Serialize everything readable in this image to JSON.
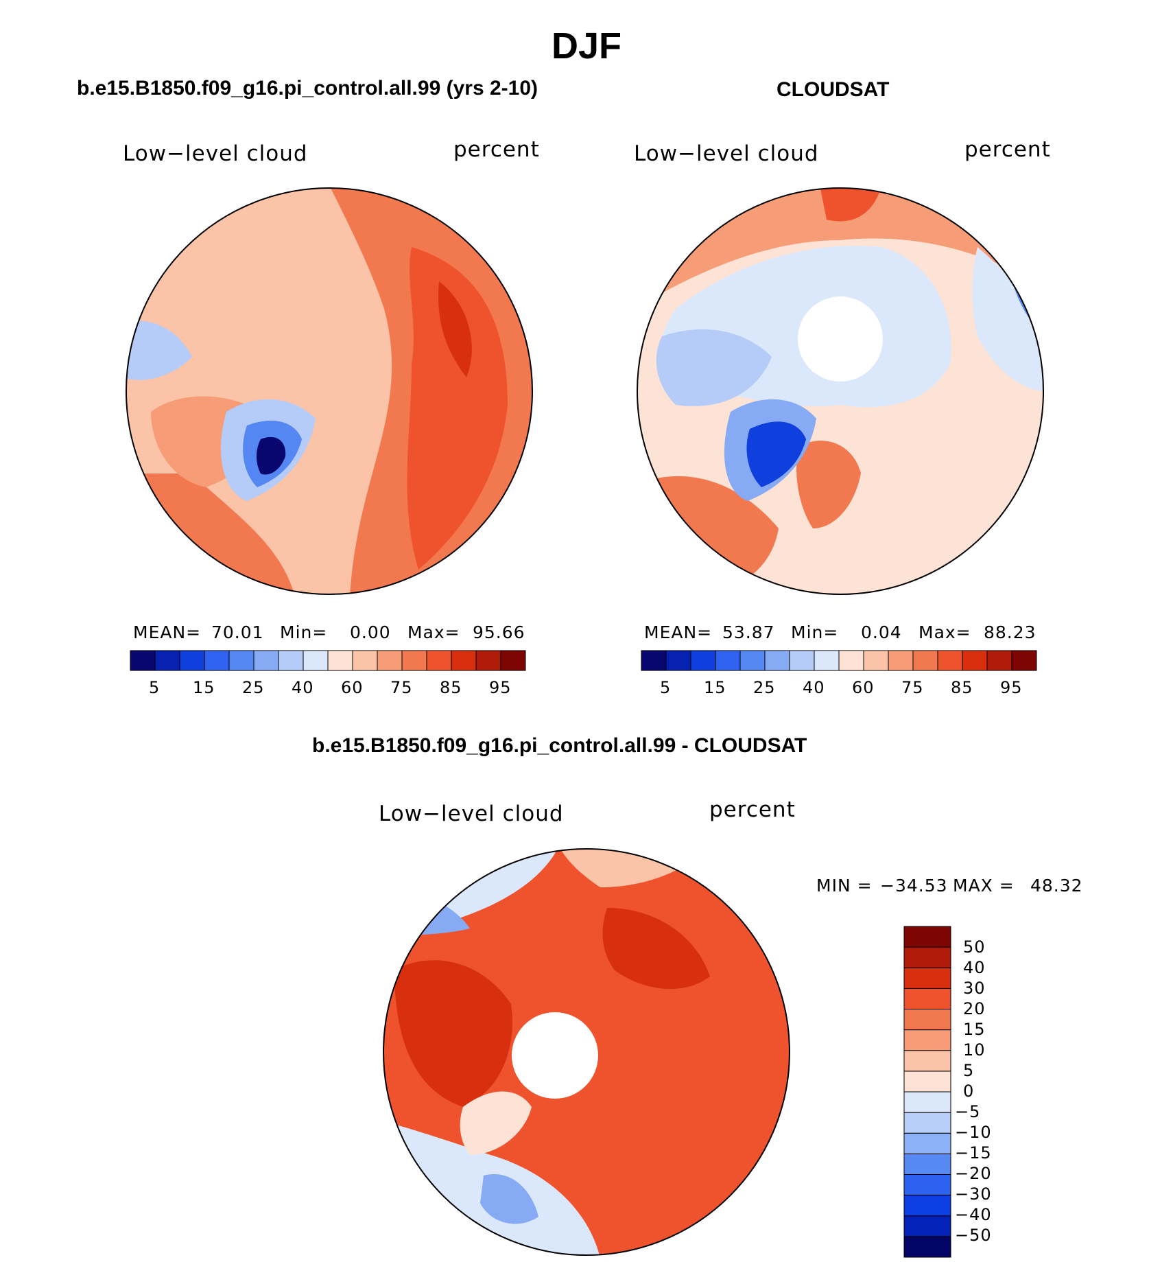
{
  "figure": {
    "season": "DJF",
    "colors": {
      "abs_scale": [
        "#08066f",
        "#0722b0",
        "#0f3fdc",
        "#2f62ee",
        "#5587f2",
        "#87aaf5",
        "#b5cbf8",
        "#dbe8fb",
        "#fde3d5",
        "#fbc3a7",
        "#f69d78",
        "#f2784f",
        "#ee532e",
        "#d8300f",
        "#b01a08",
        "#7d0503"
      ],
      "diff_scale": [
        "#020563",
        "#0422b7",
        "#0b3fe3",
        "#2d62ee",
        "#5789f3",
        "#8cb1f7",
        "#b9cff9",
        "#dbe8fb",
        "#fde3d5",
        "#fbc3a7",
        "#f69d78",
        "#f2784f",
        "#ee532e",
        "#d8300f",
        "#b01a08",
        "#7d0503"
      ]
    }
  },
  "panels": [
    {
      "id": "model",
      "title": "b.e15.B1850.f09_g16.pi_control.all.99 (yrs 2-10)",
      "left_label": "Low−level cloud",
      "right_label": "percent",
      "stats": {
        "mean_label": "MEAN=",
        "mean": "70.01",
        "min_label": "Min=",
        "min": "0.00",
        "max_label": "Max=",
        "max": "95.66"
      },
      "colorbar_ticks": [
        "5",
        "15",
        "25",
        "40",
        "60",
        "75",
        "85",
        "95"
      ]
    },
    {
      "id": "obs",
      "title": "CLOUDSAT",
      "left_label": "Low−level cloud",
      "right_label": "percent",
      "stats": {
        "mean_label": "MEAN=",
        "mean": "53.87",
        "min_label": "Min=",
        "min": "0.04",
        "max_label": "Max=",
        "max": "88.23"
      },
      "colorbar_ticks": [
        "5",
        "15",
        "25",
        "40",
        "60",
        "75",
        "85",
        "95"
      ]
    },
    {
      "id": "diff",
      "title": "b.e15.B1850.f09_g16.pi_control.all.99 - CLOUDSAT",
      "left_label": "Low−level cloud",
      "right_label": "percent",
      "stats": {
        "min_label": "MIN =",
        "min": "−34.53",
        "max_label": "MAX =",
        "max": "48.32"
      },
      "colorbar_ticks": [
        "50",
        "40",
        "30",
        "20",
        "15",
        "10",
        "5",
        "0",
        "−5",
        "−10",
        "−15",
        "−20",
        "−30",
        "−40",
        "−50"
      ]
    }
  ]
}
